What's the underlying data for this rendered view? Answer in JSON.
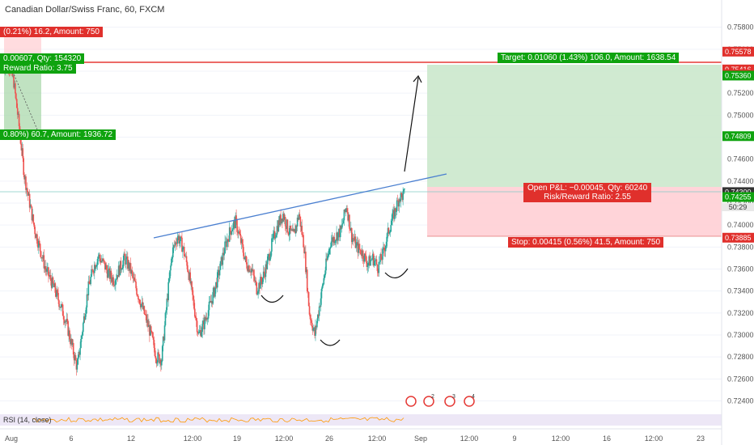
{
  "header": {
    "title": "Canadian Dollar/Swiss Franc, 60, FXCM"
  },
  "colors": {
    "up_candle": "#26a69a",
    "down_candle": "#ef5350",
    "trendline": "#4a7fd0",
    "target_zone": "#c8e6c9",
    "stop_zone": "#ffcdd2",
    "red_line": "#e53935",
    "green_label": "#0fa30f",
    "red_label": "#e0302c",
    "rsi_band": "#ede7f6"
  },
  "labels": {
    "top_left_red": "(0.21%) 16.2, Amount: 750",
    "top_left_green": "0.00607, Qty: 154320",
    "top_left_rr": "Reward Ratio: 3.75",
    "left_green_bottom": "0.80%) 60.7, Amount: 1936.72",
    "target": "Target: 0.01060 (1.43%) 106.0, Amount: 1638.54",
    "open_pl": "Open P&L: −0.00045, Qty: 60240",
    "risk_reward": "Risk/Reward Ratio: 2.55",
    "stop": "Stop: 0.00415 (0.56%) 41.5, Amount: 750",
    "rsi": "RSI (14, close)",
    "countdown": "50:29",
    "event_markers": [
      "2",
      "3",
      "4"
    ]
  },
  "chart_data": {
    "type": "candlestick",
    "title": "Canadian Dollar/Swiss Franc, 60, FXCM",
    "y_axis_ticks": [
      0.758,
      0.756,
      0.754,
      0.752,
      0.75,
      0.748,
      0.746,
      0.744,
      0.742,
      0.74,
      0.738,
      0.736,
      0.734,
      0.732,
      0.73,
      0.728,
      0.726,
      0.724
    ],
    "ylim": [
      0.7233,
      0.7593
    ],
    "x_axis_ticks": [
      "Aug",
      "6",
      "12",
      "12:00",
      "19",
      "12:00",
      "26",
      "12:00",
      "Sep",
      "12:00",
      "9",
      "12:00",
      "16",
      "12:00",
      "23"
    ],
    "price_labels": [
      {
        "value": "0.75578",
        "color": "#e0302c"
      },
      {
        "value": "0.75416",
        "color": "#e0302c"
      },
      {
        "value": "0.75373",
        "color": "#e0302c"
      },
      {
        "value": "0.75360",
        "color": "#0fa30f"
      },
      {
        "value": "0.74809",
        "color": "#0fa30f"
      },
      {
        "value": "0.74300",
        "color": "#333333"
      },
      {
        "value": "0.74255",
        "color": "#0fa30f"
      },
      {
        "value": "0.73885",
        "color": "#e0302c"
      }
    ],
    "approx_close_path": [
      0.7545,
      0.7548,
      0.753,
      0.749,
      0.7445,
      0.742,
      0.7395,
      0.7378,
      0.736,
      0.735,
      0.7338,
      0.7325,
      0.731,
      0.729,
      0.727,
      0.7305,
      0.734,
      0.736,
      0.7372,
      0.7365,
      0.7355,
      0.735,
      0.736,
      0.737,
      0.736,
      0.7345,
      0.733,
      0.7315,
      0.73,
      0.728,
      0.7278,
      0.733,
      0.7375,
      0.739,
      0.738,
      0.736,
      0.733,
      0.73,
      0.731,
      0.7325,
      0.734,
      0.736,
      0.738,
      0.7395,
      0.7403,
      0.7385,
      0.7365,
      0.736,
      0.7342,
      0.735,
      0.7365,
      0.7385,
      0.74,
      0.741,
      0.7395,
      0.739,
      0.741,
      0.738,
      0.732,
      0.73,
      0.733,
      0.736,
      0.7385,
      0.739,
      0.7395,
      0.7418,
      0.739,
      0.738,
      0.7375,
      0.7365,
      0.737,
      0.7362,
      0.7375,
      0.7395,
      0.741,
      0.7425,
      0.7428
    ]
  }
}
